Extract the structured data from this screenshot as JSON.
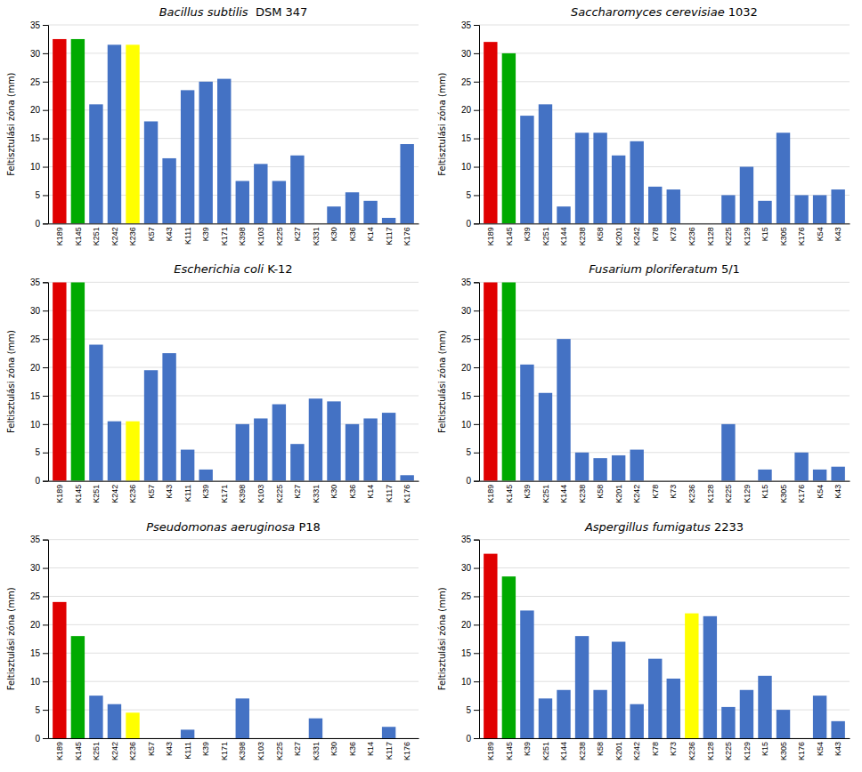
{
  "chart_data": [
    {
      "type": "bar",
      "title": "Bacillus subtilis  DSM 347",
      "ylabel": "Feltisztulási zóna (mm)",
      "categories": [
        "K189",
        "K145",
        "K251",
        "K242",
        "K236",
        "K57",
        "K43",
        "K111",
        "K39",
        "K171",
        "K398",
        "K103",
        "K225",
        "K27",
        "K331",
        "K30",
        "K36",
        "K14",
        "K117",
        "K176"
      ],
      "values": [
        32.5,
        32.5,
        21,
        31.5,
        31.5,
        18,
        11.5,
        23.5,
        25,
        25.5,
        7.5,
        10.5,
        7.5,
        12,
        0,
        3,
        5.5,
        4,
        1,
        14
      ],
      "colors": [
        "#e00000",
        "#00aa00",
        "#4472c4",
        "#4472c4",
        "#ffff00",
        "#4472c4",
        "#4472c4",
        "#4472c4",
        "#4472c4",
        "#4472c4",
        "#4472c4",
        "#4472c4",
        "#4472c4",
        "#4472c4",
        "#4472c4",
        "#4472c4",
        "#4472c4",
        "#4472c4",
        "#4472c4",
        "#4472c4"
      ],
      "ylim": [
        0,
        35
      ],
      "yticks": [
        0,
        5,
        10,
        15,
        20,
        25,
        30,
        35
      ],
      "grid": true
    },
    {
      "type": "bar",
      "title": "Saccharomyces cerevisiae 1032",
      "ylabel": "Feltisztulási zóna (mm)",
      "categories": [
        "K189",
        "K145",
        "K39",
        "K251",
        "K144",
        "K238",
        "K58",
        "K201",
        "K242",
        "K78",
        "K73",
        "K236",
        "K128",
        "K225",
        "K129",
        "K15",
        "K305",
        "K176",
        "K54",
        "K43"
      ],
      "values": [
        32,
        30,
        19,
        21,
        3,
        16,
        16,
        12,
        14.5,
        6.5,
        6,
        0,
        0,
        5,
        10,
        4,
        16,
        5,
        5,
        6
      ],
      "colors": [
        "#e00000",
        "#00aa00",
        "#4472c4",
        "#4472c4",
        "#4472c4",
        "#4472c4",
        "#4472c4",
        "#4472c4",
        "#4472c4",
        "#4472c4",
        "#4472c4",
        "#4472c4",
        "#4472c4",
        "#4472c4",
        "#4472c4",
        "#4472c4",
        "#4472c4",
        "#4472c4",
        "#4472c4",
        "#4472c4"
      ],
      "ylim": [
        0,
        35
      ],
      "yticks": [
        0,
        5,
        10,
        15,
        20,
        25,
        30,
        35
      ],
      "grid": true
    },
    {
      "type": "bar",
      "title": "Escherichia coli K-12",
      "ylabel": "Feltisztulási zóna (mm)",
      "categories": [
        "K189",
        "K145",
        "K251",
        "K242",
        "K236",
        "K57",
        "K43",
        "K111",
        "K39",
        "K171",
        "K398",
        "K103",
        "K225",
        "K27",
        "K331",
        "K30",
        "K36",
        "K14",
        "K117",
        "K176"
      ],
      "values": [
        35,
        35,
        24,
        10.5,
        10.5,
        19.5,
        22.5,
        5.5,
        2,
        0,
        10,
        11,
        13.5,
        6.5,
        14.5,
        14,
        10,
        11,
        12,
        1
      ],
      "colors": [
        "#e00000",
        "#00aa00",
        "#4472c4",
        "#4472c4",
        "#ffff00",
        "#4472c4",
        "#4472c4",
        "#4472c4",
        "#4472c4",
        "#4472c4",
        "#4472c4",
        "#4472c4",
        "#4472c4",
        "#4472c4",
        "#4472c4",
        "#4472c4",
        "#4472c4",
        "#4472c4",
        "#4472c4",
        "#4472c4"
      ],
      "ylim": [
        0,
        35
      ],
      "yticks": [
        0,
        5,
        10,
        15,
        20,
        25,
        30,
        35
      ],
      "grid": true
    },
    {
      "type": "bar",
      "title": "Fusarium ploriferatum 5/1",
      "ylabel": "Feltisztulási zóna (mm)",
      "categories": [
        "K189",
        "K145",
        "K39",
        "K251",
        "K144",
        "K238",
        "K58",
        "K201",
        "K242",
        "K78",
        "K73",
        "K236",
        "K128",
        "K225",
        "K129",
        "K15",
        "K305",
        "K176",
        "K54",
        "K43"
      ],
      "values": [
        35,
        35,
        20.5,
        15.5,
        25,
        5,
        4,
        4.5,
        5.5,
        0,
        0,
        0,
        0,
        10,
        0,
        2,
        0,
        5,
        2,
        2.5
      ],
      "colors": [
        "#e00000",
        "#00aa00",
        "#4472c4",
        "#4472c4",
        "#4472c4",
        "#4472c4",
        "#4472c4",
        "#4472c4",
        "#4472c4",
        "#4472c4",
        "#4472c4",
        "#4472c4",
        "#4472c4",
        "#4472c4",
        "#4472c4",
        "#4472c4",
        "#4472c4",
        "#4472c4",
        "#4472c4",
        "#4472c4"
      ],
      "ylim": [
        0,
        35
      ],
      "yticks": [
        0,
        5,
        10,
        15,
        20,
        25,
        30,
        35
      ],
      "grid": true
    },
    {
      "type": "bar",
      "title": "Pseudomonas aeruginosa P18",
      "ylabel": "Feltisztulási zóna (mm)",
      "categories": [
        "K189",
        "K145",
        "K251",
        "K242",
        "K236",
        "K57",
        "K43",
        "K111",
        "K39",
        "K171",
        "K398",
        "K103",
        "K225",
        "K27",
        "K331",
        "K30",
        "K36",
        "K14",
        "K117",
        "K176"
      ],
      "values": [
        24,
        18,
        7.5,
        6,
        4.5,
        0,
        0,
        1.5,
        0,
        0,
        7,
        0,
        0,
        0,
        3.5,
        0,
        0,
        0,
        2,
        0
      ],
      "colors": [
        "#e00000",
        "#00aa00",
        "#4472c4",
        "#4472c4",
        "#ffff00",
        "#4472c4",
        "#4472c4",
        "#4472c4",
        "#4472c4",
        "#4472c4",
        "#4472c4",
        "#4472c4",
        "#4472c4",
        "#4472c4",
        "#4472c4",
        "#4472c4",
        "#4472c4",
        "#4472c4",
        "#4472c4",
        "#4472c4"
      ],
      "ylim": [
        0,
        35
      ],
      "yticks": [
        0,
        5,
        10,
        15,
        20,
        25,
        30,
        35
      ],
      "grid": true
    },
    {
      "type": "bar",
      "title": "Aspergillus fumigatus 2233",
      "ylabel": "Feltisztulási zóna (mm)",
      "categories": [
        "K189",
        "K145",
        "K39",
        "K251",
        "K144",
        "K238",
        "K58",
        "K201",
        "K242",
        "K78",
        "K73",
        "K236",
        "K128",
        "K225",
        "K129",
        "K15",
        "K305",
        "K176",
        "K54",
        "K43"
      ],
      "values": [
        32.5,
        28.5,
        22.5,
        7,
        8.5,
        18,
        8.5,
        17,
        6,
        14,
        10.5,
        22,
        21.5,
        5.5,
        8.5,
        11,
        5,
        0,
        7.5,
        3
      ],
      "colors": [
        "#e00000",
        "#00aa00",
        "#4472c4",
        "#4472c4",
        "#4472c4",
        "#4472c4",
        "#4472c4",
        "#4472c4",
        "#4472c4",
        "#4472c4",
        "#4472c4",
        "#ffff00",
        "#4472c4",
        "#4472c4",
        "#4472c4",
        "#4472c4",
        "#4472c4",
        "#4472c4",
        "#4472c4",
        "#4472c4"
      ],
      "ylim": [
        0,
        35
      ],
      "yticks": [
        0,
        5,
        10,
        15,
        20,
        25,
        30,
        35
      ],
      "grid": true
    }
  ]
}
